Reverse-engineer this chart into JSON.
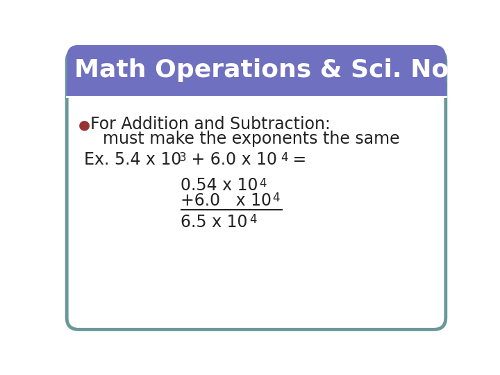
{
  "title": "Math Operations & Sci. Notation",
  "title_bg_color": "#7070C0",
  "title_text_color": "#FFFFFF",
  "slide_bg_color": "#FFFFFF",
  "outer_border_color": "#6A9898",
  "bullet_color": "#993333",
  "bullet_char": "●",
  "line1": "For Addition and Subtraction:",
  "line2": "must make the exponents the same",
  "body_text_color": "#222222",
  "title_fontsize": 26,
  "body_fontsize": 17,
  "sup_fontsize": 12
}
